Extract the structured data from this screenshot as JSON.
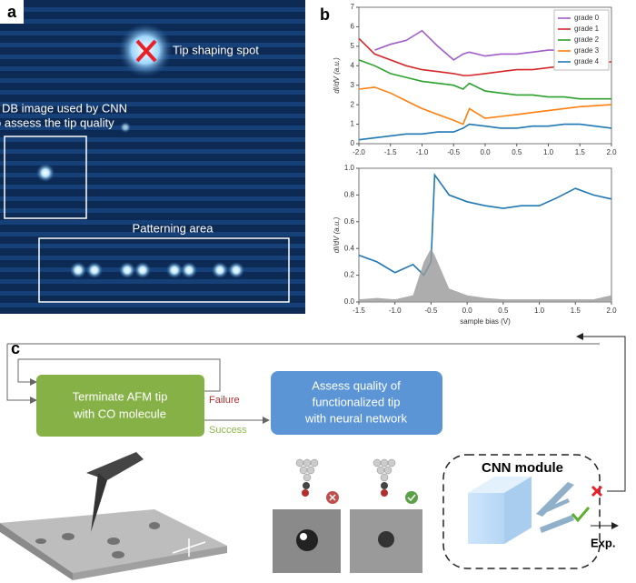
{
  "panel_a": {
    "label": "a",
    "tip_spot": "Tip shaping spot",
    "db_lines": [
      "The DB image used by CNN",
      "to assess the tip quality"
    ],
    "patterning": "Patterning area"
  },
  "panel_b": {
    "label": "b"
  },
  "panel_c": {
    "label": "c",
    "terminate_lines": [
      "Terminate AFM tip",
      "with CO molecule"
    ],
    "failure": "Failure",
    "success": "Success",
    "assess_lines": [
      "Assess quality of",
      "functionalized tip",
      "with neural network"
    ],
    "cnn": "CNN module",
    "exp": "Exp."
  },
  "chart_data": [
    {
      "type": "line",
      "ylabel": "dI/dV (a.u.)",
      "x": [
        -2,
        -1.75,
        -1.5,
        -1.25,
        -1,
        -0.75,
        -0.5,
        -0.35,
        -0.25,
        0,
        0.25,
        0.5,
        0.75,
        1,
        1.25,
        1.5,
        2
      ],
      "series": [
        {
          "name": "grade 0",
          "color": "#a05cc8",
          "values": [
            null,
            4.8,
            5.1,
            5.3,
            5.8,
            5.0,
            4.3,
            4.6,
            4.7,
            4.5,
            4.6,
            4.6,
            4.7,
            4.8,
            4.8,
            null,
            null
          ]
        },
        {
          "name": "grade 1",
          "color": "#d62728",
          "values": [
            5.4,
            4.6,
            4.3,
            4.0,
            3.8,
            3.7,
            3.6,
            3.5,
            3.5,
            3.6,
            3.7,
            3.8,
            3.8,
            3.9,
            4.0,
            4.1,
            4.2
          ]
        },
        {
          "name": "grade 2",
          "color": "#2ca02c",
          "values": [
            4.3,
            4.0,
            3.6,
            3.4,
            3.2,
            3.1,
            3.0,
            2.8,
            3.1,
            2.7,
            2.6,
            2.5,
            2.5,
            2.4,
            2.4,
            2.3,
            2.3
          ]
        },
        {
          "name": "grade 3",
          "color": "#ff7f0e",
          "values": [
            2.8,
            2.9,
            2.6,
            2.2,
            1.8,
            1.5,
            1.2,
            1.0,
            1.8,
            1.3,
            1.4,
            1.5,
            1.6,
            1.7,
            1.8,
            1.9,
            2.0
          ]
        },
        {
          "name": "grade 4",
          "color": "#1f77b4",
          "values": [
            0.2,
            0.3,
            0.4,
            0.5,
            0.5,
            0.6,
            0.6,
            0.8,
            1.0,
            0.9,
            0.8,
            0.8,
            0.9,
            0.9,
            1.0,
            1.0,
            0.8
          ]
        }
      ],
      "xlim": [
        -2,
        2
      ],
      "ylim": [
        0,
        7
      ],
      "xticks": [
        {
          "value": -2,
          "label": "-2.0"
        },
        -1.5,
        {
          "value": -1,
          "label": "-1.0"
        },
        -0.5,
        {
          "value": 0,
          "label": "0.0"
        },
        0.5,
        {
          "value": 1,
          "label": "1.0"
        },
        1.5,
        {
          "value": 2,
          "label": "2.0"
        }
      ],
      "yticks": [
        0,
        1,
        2,
        3,
        4,
        5,
        6,
        7
      ],
      "legend": "upper right"
    },
    {
      "type": "line",
      "xlabel": "sample bias (V)",
      "ylabel": "dI/dV (a.u.)",
      "x": [
        -1.5,
        -1.25,
        -1,
        -0.75,
        -0.6,
        -0.5,
        -0.45,
        -0.25,
        0,
        0.25,
        0.5,
        0.75,
        1,
        1.25,
        1.5,
        1.75,
        2
      ],
      "series": [
        {
          "color": "#1f77b4",
          "values": [
            0.35,
            0.3,
            0.22,
            0.28,
            0.2,
            0.3,
            0.95,
            0.8,
            0.75,
            0.72,
            0.7,
            0.72,
            0.72,
            0.78,
            0.85,
            0.8,
            0.77
          ]
        },
        {
          "color": "#999999",
          "fill": true,
          "values": [
            0.02,
            0.03,
            0.02,
            0.05,
            0.3,
            0.4,
            0.35,
            0.1,
            0.05,
            0.03,
            0.02,
            0.02,
            0.02,
            0.02,
            0.02,
            0.02,
            0.05
          ]
        }
      ],
      "xlim": [
        -1.5,
        2
      ],
      "ylim": [
        0,
        1
      ],
      "xticks": [
        -1.5,
        {
          "value": -1,
          "label": "-1.0"
        },
        -0.5,
        {
          "value": 0,
          "label": "0.0"
        },
        0.5,
        {
          "value": 1,
          "label": "1.0"
        },
        1.5,
        {
          "value": 2,
          "label": "2.0"
        }
      ],
      "yticks": [
        {
          "value": 0,
          "label": "0.0"
        },
        0.2,
        0.4,
        0.6,
        0.8,
        {
          "value": 1,
          "label": "1.0"
        }
      ]
    }
  ]
}
